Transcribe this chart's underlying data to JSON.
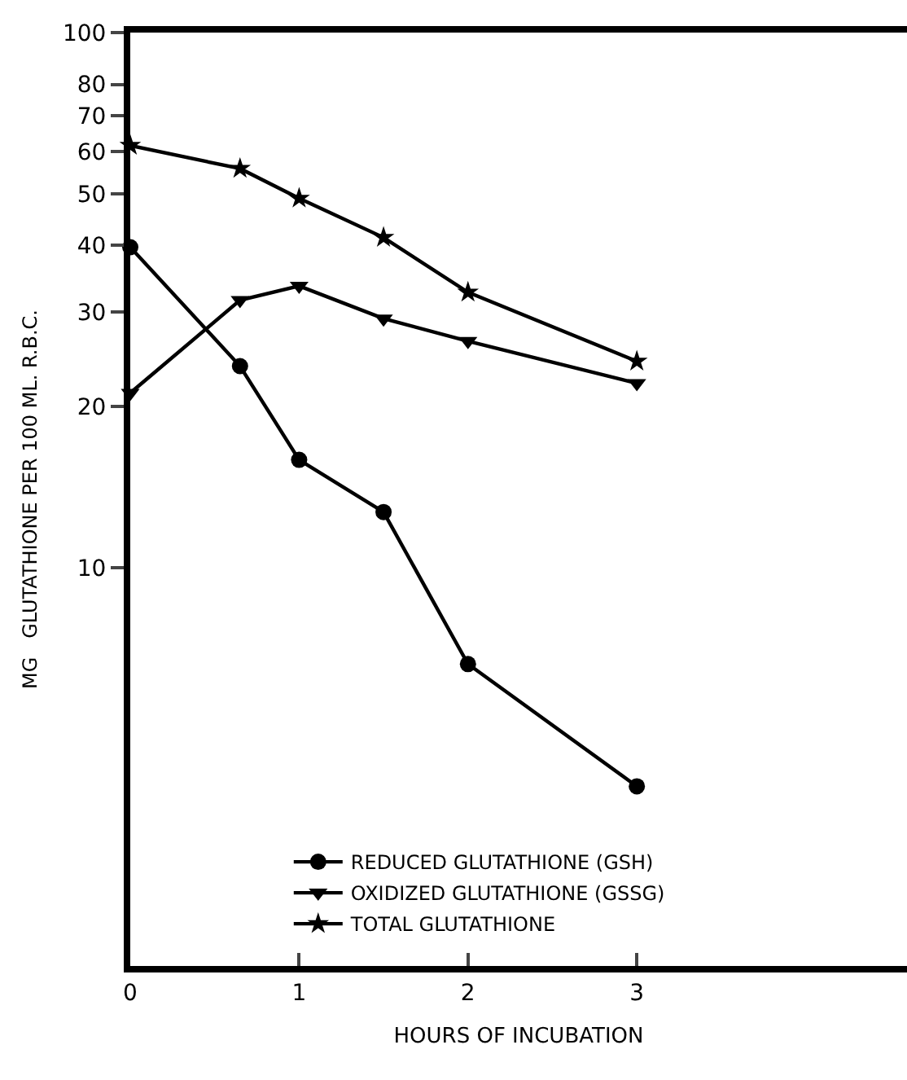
{
  "chart_data": {
    "type": "line",
    "xlabel": "HOURS OF INCUBATION",
    "ylabel": "MG   GLUTATHIONE PER 100 ML. R.B.C.",
    "log": "y",
    "xlim": [
      0,
      4.6
    ],
    "xticks": [
      0,
      1,
      2,
      3
    ],
    "ylim": [
      1.8,
      100
    ],
    "yticks": [
      10,
      20,
      30,
      40,
      50,
      60,
      70,
      80,
      100
    ],
    "legend": "bottom",
    "line_style": "solid",
    "series": [
      {
        "name": "REDUCED GLUTATHIONE (GSH)",
        "color": "#000000",
        "marker": "circle",
        "x": [
          0,
          0.65,
          1,
          1.5,
          2,
          3
        ],
        "values": [
          39.7,
          23.8,
          15.9,
          12.7,
          6.6,
          3.9
        ]
      },
      {
        "name": "OXIDIZED GLUTATHIONE (GSSG)",
        "color": "#000000",
        "marker": "triangle",
        "x": [
          0,
          0.65,
          1,
          1.5,
          2,
          3
        ],
        "values": [
          21.2,
          31.6,
          33.6,
          29.2,
          26.5,
          22.1
        ]
      },
      {
        "name": "TOTAL GLUTATHIONE",
        "color": "#000000",
        "marker": "star",
        "x": [
          0,
          0.65,
          1,
          1.5,
          2,
          3
        ],
        "values": [
          61.5,
          55.7,
          49,
          41.4,
          32.7,
          24.3
        ]
      }
    ]
  }
}
